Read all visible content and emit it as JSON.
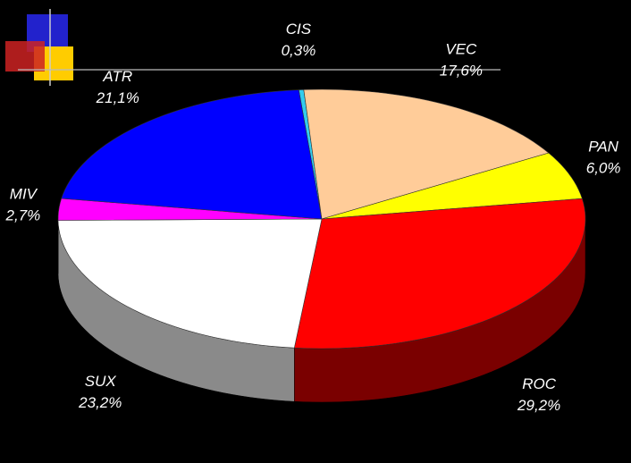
{
  "chart_data": {
    "type": "pie3d",
    "categories": [
      "CIS",
      "VEC",
      "PAN",
      "ROC",
      "SUX",
      "MIV",
      "ATR"
    ],
    "values": [
      0.3,
      17.6,
      6.0,
      29.2,
      23.2,
      2.7,
      21.1
    ],
    "value_labels": [
      "0,3%",
      "17,6%",
      "6,0%",
      "29,2%",
      "23,2%",
      "2,7%",
      "21,1%"
    ],
    "colors": [
      "#33ccee",
      "#ffcc99",
      "#ffff00",
      "#ff0000",
      "#ffffff",
      "#ff00ff",
      "#0000ff"
    ],
    "side_colors": [
      "#1a6677",
      "#806650",
      "#808000",
      "#7a0000",
      "#8a8a8a",
      "#800080",
      "#000080"
    ]
  }
}
